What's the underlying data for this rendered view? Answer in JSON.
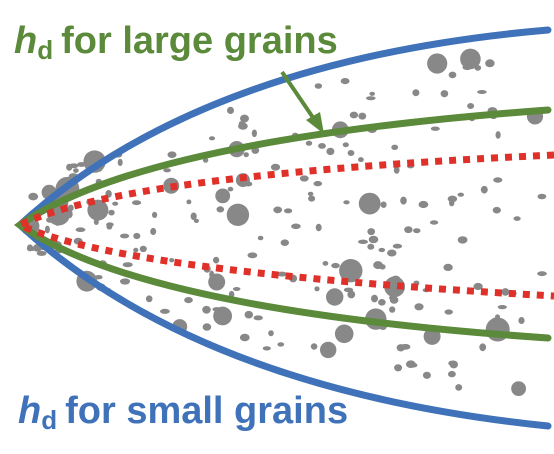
{
  "labels": {
    "large": {
      "symbol": "h",
      "subscript": "d",
      "text": "for large grains"
    },
    "small": {
      "symbol": "h",
      "subscript": "d",
      "text": "for small grains"
    }
  },
  "colors": {
    "large_grains": "#5a8a3a",
    "small_grains": "#3f72b8",
    "dotted_boundary": "#e0302a",
    "grains": "#888888"
  },
  "curves": [
    {
      "name": "small-grains-outer",
      "color_key": "small_grains",
      "style": "solid"
    },
    {
      "name": "large-grains-middle",
      "color_key": "large_grains",
      "style": "solid"
    },
    {
      "name": "red-inner",
      "color_key": "dotted_boundary",
      "style": "dotted"
    }
  ]
}
